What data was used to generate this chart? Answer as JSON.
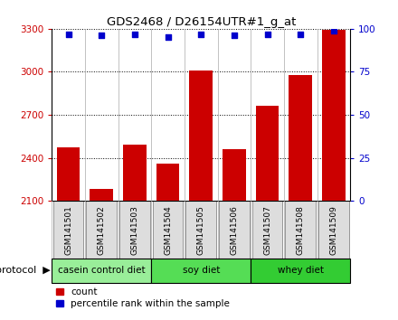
{
  "title": "GDS2468 / D26154UTR#1_g_at",
  "samples": [
    "GSM141501",
    "GSM141502",
    "GSM141503",
    "GSM141504",
    "GSM141505",
    "GSM141506",
    "GSM141507",
    "GSM141508",
    "GSM141509"
  ],
  "counts": [
    2470,
    2180,
    2490,
    2360,
    3010,
    2460,
    2760,
    2980,
    3290
  ],
  "percentiles": [
    97,
    96,
    97,
    95,
    97,
    96,
    97,
    97,
    99
  ],
  "ylim_left": [
    2100,
    3300
  ],
  "ylim_right": [
    0,
    100
  ],
  "yticks_left": [
    2100,
    2400,
    2700,
    3000,
    3300
  ],
  "yticks_right": [
    0,
    25,
    50,
    75,
    100
  ],
  "bar_color": "#cc0000",
  "dot_color": "#0000cc",
  "grid_color": "#000000",
  "groups": [
    {
      "label": "casein control diet",
      "start": 0,
      "end": 3,
      "color": "#99ee99"
    },
    {
      "label": "soy diet",
      "start": 3,
      "end": 6,
      "color": "#55dd55"
    },
    {
      "label": "whey diet",
      "start": 6,
      "end": 9,
      "color": "#33cc33"
    }
  ],
  "tick_color_left": "#cc0000",
  "tick_color_right": "#0000cc",
  "bg_color": "#ffffff",
  "bar_width": 0.7,
  "label_box_color": "#dddddd",
  "label_box_edge": "#888888",
  "spine_color": "#000000"
}
